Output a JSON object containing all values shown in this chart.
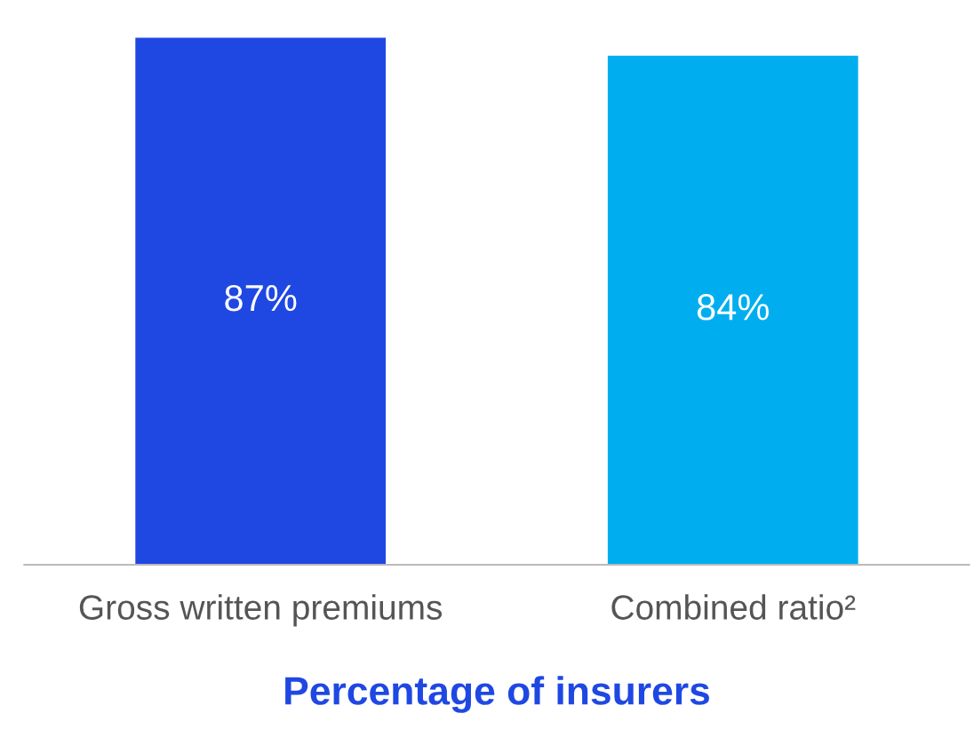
{
  "chart_data": {
    "type": "bar",
    "xlabel": "Percentage of insurers",
    "categories": [
      "Gross written premiums",
      "Combined ratio²"
    ],
    "values": [
      87,
      84
    ],
    "colors": [
      "#1f48e3",
      "#00aeef"
    ],
    "data_labels": true,
    "value_labels": [
      "87%",
      "84%"
    ],
    "tick_labels": "x",
    "grid": false,
    "legend": false
  }
}
